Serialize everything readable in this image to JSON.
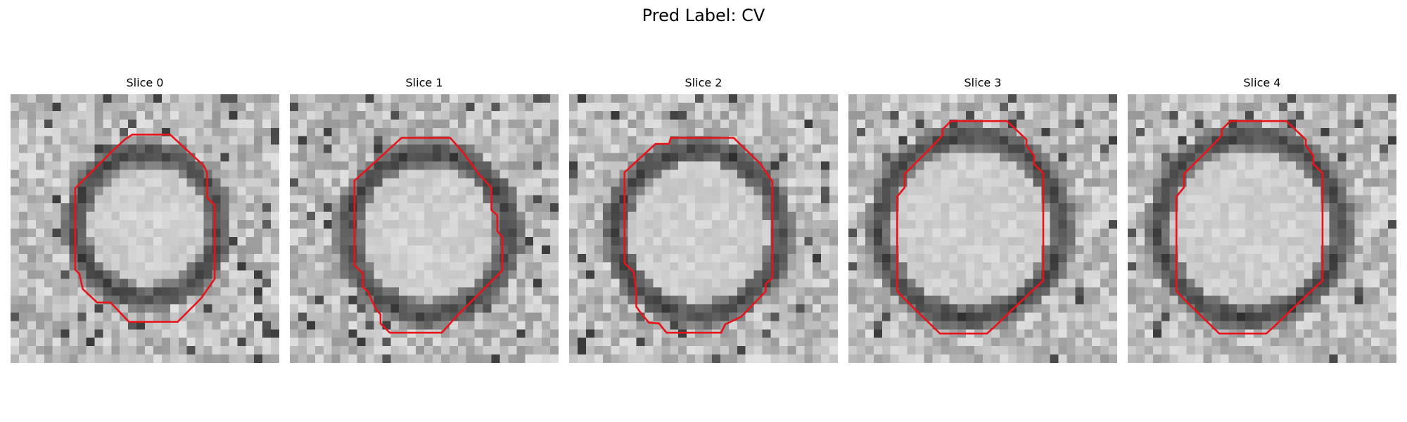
{
  "figure": {
    "title": "Pred Label: CV"
  },
  "colors": {
    "background": "#ffffff",
    "contour": "#e8141b",
    "ring": "#3a3a3a",
    "interior": "#e6e6e6",
    "outer": "#9a9a9a"
  },
  "panels": [
    {
      "title": "Slice 0",
      "contour": [
        [
          14.5,
          4.8
        ],
        [
          19,
          4.8
        ],
        [
          23,
          8.5
        ],
        [
          23.4,
          9.3
        ],
        [
          23.4,
          12.3
        ],
        [
          24.3,
          13.2
        ],
        [
          24.3,
          22
        ],
        [
          22.7,
          24.3
        ],
        [
          19.9,
          27.1
        ],
        [
          14.1,
          27.1
        ],
        [
          11.9,
          24.8
        ],
        [
          10.3,
          24.8
        ],
        [
          8.6,
          23.2
        ],
        [
          8.2,
          21.4
        ],
        [
          7.7,
          20.9
        ],
        [
          7.7,
          11.2
        ],
        [
          11.2,
          7.7
        ],
        [
          12.1,
          6.8
        ],
        [
          13.6,
          5.4
        ]
      ]
    },
    {
      "title": "Slice 1",
      "contour": [
        [
          13.3,
          5.2
        ],
        [
          19.1,
          5.2
        ],
        [
          20.6,
          6.9
        ],
        [
          22.3,
          9.2
        ],
        [
          22.3,
          9.3
        ],
        [
          24,
          11.1
        ],
        [
          24,
          13.8
        ],
        [
          24.7,
          14.4
        ],
        [
          24.7,
          16.3
        ],
        [
          25.3,
          17
        ],
        [
          25.3,
          21
        ],
        [
          23.8,
          22.5
        ],
        [
          19.9,
          26.4
        ],
        [
          18.1,
          28.4
        ],
        [
          11.9,
          28.4
        ],
        [
          10.8,
          27.3
        ],
        [
          10.8,
          26.2
        ],
        [
          10.3,
          25.7
        ],
        [
          9.3,
          23.5
        ],
        [
          8.7,
          23
        ],
        [
          8.7,
          21.3
        ],
        [
          7.7,
          20.4
        ],
        [
          7.7,
          10.3
        ]
      ]
    },
    {
      "title": "Slice 2",
      "contour": [
        [
          12.1,
          5.2
        ],
        [
          19.6,
          5.2
        ],
        [
          22.8,
          8.3
        ],
        [
          24.2,
          10.4
        ],
        [
          24.2,
          21.9
        ],
        [
          23.4,
          22.6
        ],
        [
          23.4,
          23.5
        ],
        [
          20.5,
          26.5
        ],
        [
          18.6,
          27.4
        ],
        [
          18.1,
          28.4
        ],
        [
          11.6,
          28.4
        ],
        [
          10.7,
          27.3
        ],
        [
          9.5,
          27.2
        ],
        [
          8.5,
          26
        ],
        [
          8,
          25.3
        ],
        [
          8,
          23.5
        ],
        [
          7.7,
          21.2
        ],
        [
          6.6,
          20.1
        ],
        [
          6.6,
          9.3
        ],
        [
          10.3,
          5.9
        ],
        [
          11.9,
          5.9
        ]
      ]
    },
    {
      "title": "Slice 3",
      "contour": [
        [
          12.2,
          3.2
        ],
        [
          18.9,
          3.2
        ],
        [
          21.2,
          5.4
        ],
        [
          21.2,
          6.1
        ],
        [
          22.1,
          7.3
        ],
        [
          22.1,
          8.3
        ],
        [
          23.2,
          9.4
        ],
        [
          23.2,
          22.2
        ],
        [
          20.1,
          25.1
        ],
        [
          17.4,
          27.7
        ],
        [
          16.5,
          28.5
        ],
        [
          10.9,
          28.5
        ],
        [
          6.6,
          24.3
        ],
        [
          5.8,
          23.4
        ],
        [
          5.8,
          12.2
        ],
        [
          6.7,
          11.1
        ],
        [
          6.7,
          9.5
        ],
        [
          10.1,
          6.1
        ],
        [
          11.2,
          4.9
        ],
        [
          11.2,
          4.2
        ]
      ]
    },
    {
      "title": "Slice 4",
      "contour": [
        [
          12.2,
          3.2
        ],
        [
          18.9,
          3.2
        ],
        [
          21.2,
          5.4
        ],
        [
          21.2,
          6.1
        ],
        [
          22.1,
          7.3
        ],
        [
          22.1,
          8.3
        ],
        [
          23.2,
          9.4
        ],
        [
          23.2,
          22.2
        ],
        [
          20.1,
          25.1
        ],
        [
          17.4,
          27.7
        ],
        [
          16.5,
          28.5
        ],
        [
          10.9,
          28.5
        ],
        [
          6.6,
          24.3
        ],
        [
          5.8,
          23.4
        ],
        [
          5.8,
          12.2
        ],
        [
          6.7,
          11.1
        ],
        [
          6.7,
          9.5
        ],
        [
          10.1,
          6.1
        ],
        [
          11.2,
          4.9
        ],
        [
          11.2,
          4.2
        ]
      ]
    }
  ]
}
